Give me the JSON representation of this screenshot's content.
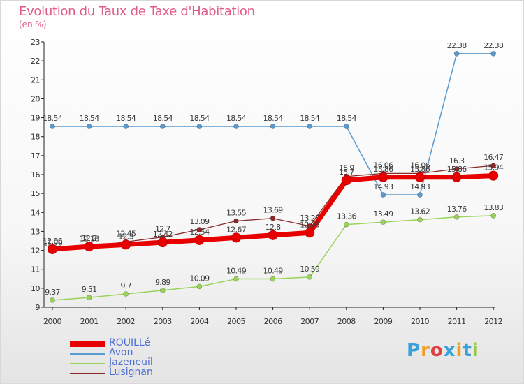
{
  "title": "Evolution du Taux de Taxe d'Habitation",
  "unit": "(en %)",
  "logo": {
    "letters": [
      "P",
      "r",
      "o",
      "x",
      "i",
      "t",
      "i"
    ]
  },
  "chart_data": {
    "type": "line",
    "x": [
      "2000",
      "2001",
      "2002",
      "2003",
      "2004",
      "2005",
      "2006",
      "2007",
      "2008",
      "2009",
      "2010",
      "2011",
      "2012"
    ],
    "ylim": [
      9,
      23
    ],
    "yticks": [
      "9",
      "10",
      "11",
      "12",
      "13",
      "14",
      "15",
      "16",
      "17",
      "18",
      "19",
      "20",
      "21",
      "22",
      "23"
    ],
    "grid": false,
    "legend_position": "bottom-left",
    "series": [
      {
        "name": "Lusignan",
        "color": "#8b2a2a",
        "values": [
          11.96,
          12.18,
          12.45,
          12.7,
          13.09,
          13.55,
          13.69,
          13.28,
          15.9,
          16.06,
          16.06,
          16.3,
          16.47
        ],
        "labels": [
          "11.96",
          "12.18",
          "12.45",
          "12.7",
          "13.09",
          "13.55",
          "13.69",
          "13.28",
          "15.9",
          "16.06",
          "16.06",
          "16.3",
          "16.47"
        ]
      },
      {
        "name": "Jazeneuil",
        "color": "#9ad35a",
        "values": [
          9.37,
          9.51,
          9.7,
          9.89,
          10.09,
          10.49,
          10.49,
          10.59,
          13.36,
          13.49,
          13.62,
          13.76,
          13.83
        ],
        "labels": [
          "9.37",
          "9.51",
          "9.7",
          "9.89",
          "10.09",
          "10.49",
          "10.49",
          "10.59",
          "13.36",
          "13.49",
          "13.62",
          "13.76",
          "13.83"
        ]
      },
      {
        "name": "Avon",
        "color": "#5a9ad0",
        "values": [
          18.54,
          18.54,
          18.54,
          18.54,
          18.54,
          18.54,
          18.54,
          18.54,
          18.54,
          14.93,
          14.93,
          22.38,
          22.38
        ],
        "labels": [
          "18.54",
          "18.54",
          "18.54",
          "18.54",
          "18.54",
          "18.54",
          "18.54",
          "18.54",
          "18.54",
          "14.93",
          "14.93",
          "22.38",
          "22.38"
        ]
      },
      {
        "name": "ROUILLé",
        "color": "#e80000",
        "values": [
          12.06,
          12.2,
          12.3,
          12.42,
          12.54,
          12.67,
          12.8,
          12.93,
          15.7,
          15.86,
          15.86,
          15.86,
          15.94
        ],
        "labels": [
          "12.06",
          "12.2",
          "12.3",
          "12.42",
          "12.54",
          "12.67",
          "12.8",
          "12.93",
          "15.7",
          "15.86",
          "15.86",
          "15.86",
          "15.94"
        ]
      }
    ],
    "legend_order": [
      "ROUILLé",
      "Avon",
      "Jazeneuil",
      "Lusignan"
    ]
  }
}
